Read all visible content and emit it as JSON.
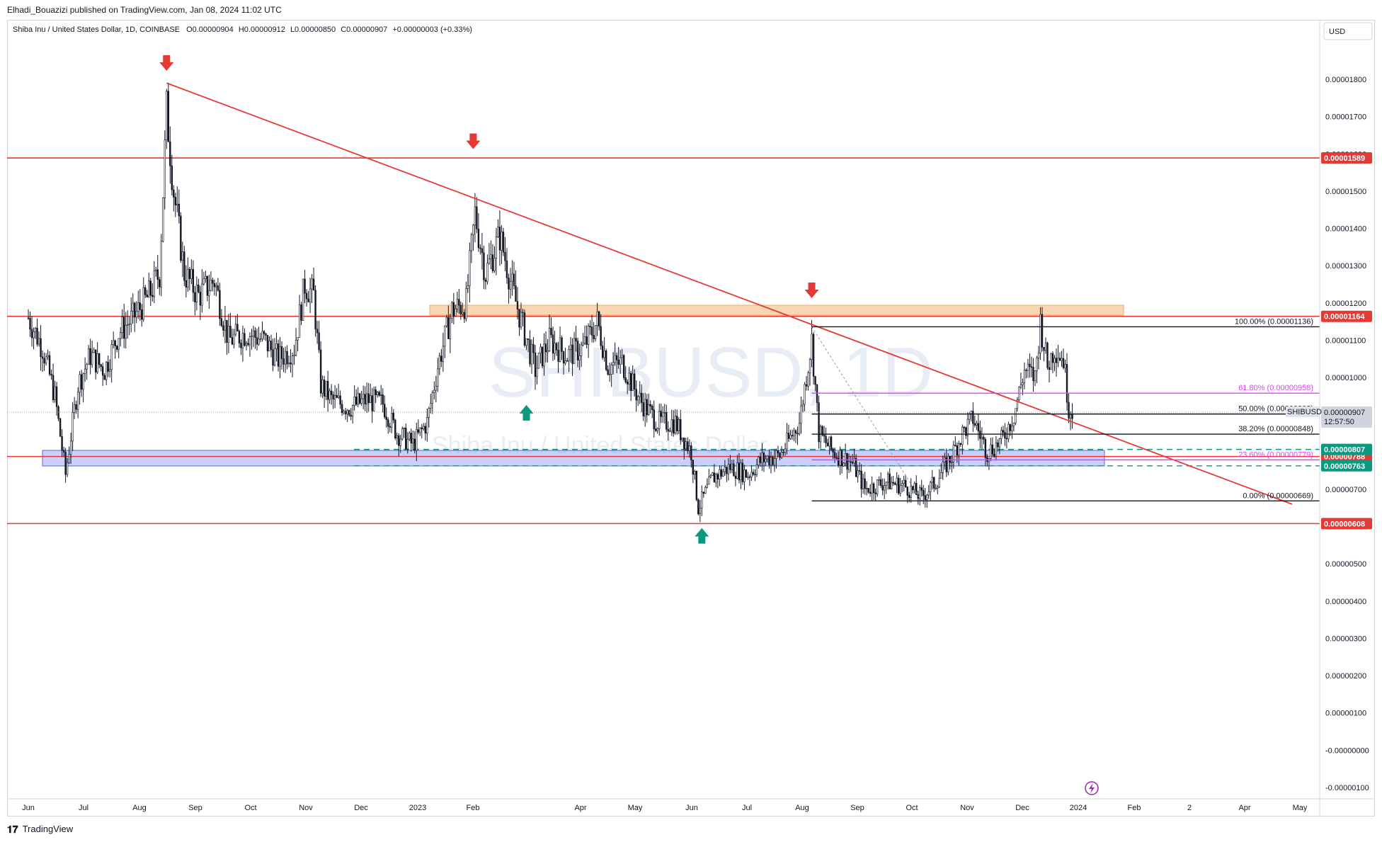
{
  "header": {
    "published_line": "Elhadi_Bouazizi published on TradingView.com, Jan 08, 2024 11:02 UTC"
  },
  "legend": {
    "symbol_line": "Shiba Inu / United States Dollar, 1D, COINBASE",
    "open": "O0.00000904",
    "high": "H0.00000912",
    "low": "L0.00000850",
    "close": "C0.00000907",
    "change": "+0.00000003 (+0.33%)"
  },
  "currency_button": "USD",
  "watermark": {
    "symbol": "SHIBUSD, 1D",
    "name": "Shiba Inu / United States Dollar"
  },
  "footer": {
    "brand": "TradingView"
  },
  "colors": {
    "candle": "#131722",
    "red_line": "#e53935",
    "green_arrow": "#089981",
    "fib_magenta": "#e040fb",
    "orange_zone": "#f7c28c",
    "blue_zone": "#9fa8ff",
    "teal_dash": "#089981"
  },
  "chart_data": {
    "type": "candlestick",
    "symbol": "SHIBUSD",
    "timeframe": "1D",
    "exchange": "COINBASE",
    "y_axis": {
      "scale": "linear",
      "ylim": [
        -1.1e-06,
        1.9e-06
      ],
      "tick_labels": [
        "0.00001800",
        "0.00001700",
        "0.00001600",
        "0.00001500",
        "0.00001400",
        "0.00001300",
        "0.00001200",
        "0.00001100",
        "0.00001000",
        "0.00000800",
        "0.00000700",
        "0.00000600",
        "0.00000500",
        "0.00000400",
        "0.00000300",
        "0.00000200",
        "0.00000100",
        "-0.00000000",
        "-0.00000100"
      ],
      "tick_values": [
        1.8e-05,
        1.7e-05,
        1.6e-05,
        1.5e-05,
        1.4e-05,
        1.3e-05,
        1.2e-05,
        1.1e-05,
        1e-05,
        8e-06,
        7e-06,
        6e-06,
        5e-06,
        4e-06,
        3e-06,
        2e-06,
        1e-06,
        0.0,
        -1e-06
      ]
    },
    "x_axis": {
      "tick_labels": [
        "Jun",
        "Jul",
        "Aug",
        "Sep",
        "Oct",
        "Nov",
        "Dec",
        "2023",
        "Feb",
        "Apr",
        "May",
        "Jun",
        "Jul",
        "Aug",
        "Sep",
        "Oct",
        "Nov",
        "Dec",
        "2024",
        "Feb",
        "2",
        "Apr",
        "May"
      ]
    },
    "price_series": [
      [
        "2022-05-28",
        1.16e-05
      ],
      [
        "2022-06-05",
        1.08e-05
      ],
      [
        "2022-06-12",
        9.5e-06
      ],
      [
        "2022-06-18",
        7.4e-06
      ],
      [
        "2022-06-25",
        9.8e-06
      ],
      [
        "2022-07-02",
        1.06e-05
      ],
      [
        "2022-07-10",
        1.02e-05
      ],
      [
        "2022-07-18",
        1.12e-05
      ],
      [
        "2022-07-26",
        1.16e-05
      ],
      [
        "2022-08-04",
        1.22e-05
      ],
      [
        "2022-08-10",
        1.28e-05
      ],
      [
        "2022-08-14",
        1.72e-05
      ],
      [
        "2022-08-18",
        1.5e-05
      ],
      [
        "2022-08-24",
        1.28e-05
      ],
      [
        "2022-09-01",
        1.22e-05
      ],
      [
        "2022-09-10",
        1.26e-05
      ],
      [
        "2022-09-18",
        1.1e-05
      ],
      [
        "2022-09-28",
        1.12e-05
      ],
      [
        "2022-10-08",
        1.1e-05
      ],
      [
        "2022-10-16",
        1.05e-05
      ],
      [
        "2022-10-25",
        1.08e-05
      ],
      [
        "2022-10-31",
        1.25e-05
      ],
      [
        "2022-11-05",
        1.22e-05
      ],
      [
        "2022-11-09",
        9.8e-06
      ],
      [
        "2022-11-15",
        9.4e-06
      ],
      [
        "2022-11-25",
        9.2e-06
      ],
      [
        "2022-12-05",
        9.4e-06
      ],
      [
        "2022-12-14",
        9.3e-06
      ],
      [
        "2022-12-22",
        8.5e-06
      ],
      [
        "2022-12-31",
        8.2e-06
      ],
      [
        "2023-01-08",
        8.8e-06
      ],
      [
        "2023-01-14",
        1.03e-05
      ],
      [
        "2023-01-22",
        1.18e-05
      ],
      [
        "2023-01-30",
        1.2e-05
      ],
      [
        "2023-02-04",
        1.44e-05
      ],
      [
        "2023-02-10",
        1.28e-05
      ],
      [
        "2023-02-18",
        1.38e-05
      ],
      [
        "2023-02-26",
        1.22e-05
      ],
      [
        "2023-03-04",
        1.12e-05
      ],
      [
        "2023-03-10",
        1.02e-05
      ],
      [
        "2023-03-18",
        1.1e-05
      ],
      [
        "2023-03-28",
        1.06e-05
      ],
      [
        "2023-04-06",
        1.08e-05
      ],
      [
        "2023-04-14",
        1.15e-05
      ],
      [
        "2023-04-20",
        1.03e-05
      ],
      [
        "2023-04-28",
        1.04e-05
      ],
      [
        "2023-05-08",
        9.4e-06
      ],
      [
        "2023-05-18",
        8.8e-06
      ],
      [
        "2023-05-28",
        8.8e-06
      ],
      [
        "2023-06-06",
        8e-06
      ],
      [
        "2023-06-10",
        6.5e-06
      ],
      [
        "2023-06-18",
        7.3e-06
      ],
      [
        "2023-06-28",
        7.6e-06
      ],
      [
        "2023-07-08",
        7.4e-06
      ],
      [
        "2023-07-16",
        7.8e-06
      ],
      [
        "2023-07-26",
        7.9e-06
      ],
      [
        "2023-08-06",
        8.8e-06
      ],
      [
        "2023-08-13",
        1.1e-05
      ],
      [
        "2023-08-17",
        8.5e-06
      ],
      [
        "2023-08-25",
        8e-06
      ],
      [
        "2023-09-05",
        7.7e-06
      ],
      [
        "2023-09-12",
        7e-06
      ],
      [
        "2023-09-24",
        7.2e-06
      ],
      [
        "2023-10-04",
        7.1e-06
      ],
      [
        "2023-10-14",
        6.8e-06
      ],
      [
        "2023-10-22",
        7.2e-06
      ],
      [
        "2023-10-31",
        7.9e-06
      ],
      [
        "2023-11-06",
        8.5e-06
      ],
      [
        "2023-11-12",
        8.9e-06
      ],
      [
        "2023-11-20",
        8e-06
      ],
      [
        "2023-11-28",
        8.3e-06
      ],
      [
        "2023-12-05",
        9e-06
      ],
      [
        "2023-12-11",
        1.02e-05
      ],
      [
        "2023-12-17",
        1e-05
      ],
      [
        "2023-12-20",
        1.15e-05
      ],
      [
        "2023-12-24",
        1.03e-05
      ],
      [
        "2023-12-28",
        1.08e-05
      ],
      [
        "2024-01-02",
        1.05e-05
      ],
      [
        "2024-01-05",
        9.2e-06
      ],
      [
        "2024-01-08",
        9.07e-06
      ]
    ],
    "horizontal_levels": [
      {
        "label": "0.00001589",
        "value": 1.589e-05
      },
      {
        "label": "0.00001164",
        "value": 1.164e-05
      },
      {
        "label": "0.00000788",
        "value": 7.88e-06
      },
      {
        "label": "0.00000608",
        "value": 6.08e-06
      }
    ],
    "dashed_levels": [
      {
        "label": "0.00000807",
        "value": 8.07e-06
      },
      {
        "label": "0.00000763",
        "value": 7.63e-06
      }
    ],
    "current_price": {
      "label": "0.00000907",
      "value": 9.07e-06,
      "ticker": "SHIBUSD",
      "countdown": "12:57:50"
    },
    "fibonacci": [
      {
        "label": "100.00% (0.00001136)",
        "value": 1.136e-05,
        "color": "#131722"
      },
      {
        "label": "61.80% (0.00000958)",
        "value": 9.58e-06,
        "color": "#e040fb"
      },
      {
        "label": "50.00% (0.00000902)",
        "value": 9.02e-06,
        "color": "#131722"
      },
      {
        "label": "38.20% (0.00000848)",
        "value": 8.48e-06,
        "color": "#131722"
      },
      {
        "label": "23.60% (0.00000779)",
        "value": 7.79e-06,
        "color": "#e040fb"
      },
      {
        "label": "0.00% (0.00000669)",
        "value": 6.69e-06,
        "color": "#131722"
      }
    ],
    "zones": [
      {
        "name": "resistance",
        "from": 1.16e-05,
        "to": 1.19e-05
      },
      {
        "name": "support",
        "from": 7.6e-06,
        "to": 8.1e-06
      }
    ],
    "trendline": {
      "from": [
        "2022-08-14",
        1.79e-05
      ],
      "to": [
        "2024-05-10",
        6.6e-06
      ]
    },
    "markers": [
      {
        "type": "down",
        "date": "2022-08-14",
        "value": 1.8e-05
      },
      {
        "type": "down",
        "date": "2023-02-03",
        "value": 1.59e-05
      },
      {
        "type": "down",
        "date": "2023-08-13",
        "value": 1.19e-05
      },
      {
        "type": "up",
        "date": "2023-03-05",
        "value": 9.3e-06
      },
      {
        "type": "up",
        "date": "2023-06-12",
        "value": 6e-06
      }
    ]
  }
}
